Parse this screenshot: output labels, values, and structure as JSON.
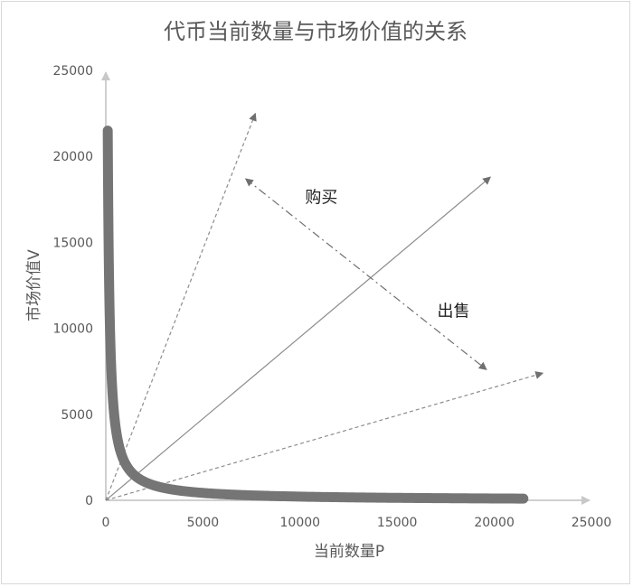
{
  "chart_data": {
    "type": "line",
    "title": "代币当前数量与市场价值的关系",
    "xlabel": "当前数量P",
    "ylabel": "市场价值V",
    "xlim": [
      0,
      25000
    ],
    "ylim": [
      0,
      25000
    ],
    "x_ticks": [
      "0",
      "5000",
      "10000",
      "15000",
      "20000",
      "25000"
    ],
    "y_ticks": [
      "0",
      "5000",
      "10000",
      "15000",
      "20000",
      "25000"
    ],
    "grid": false,
    "legend": "none",
    "series": [
      {
        "curve": "P*V=k",
        "k": 2150000,
        "x_range": [
          100,
          21500
        ],
        "color": "#757575"
      }
    ],
    "rays": [
      {
        "style": "dashed",
        "to": [
          7700,
          22500
        ]
      },
      {
        "style": "solid",
        "to": [
          19800,
          18800
        ]
      },
      {
        "style": "dashed",
        "to": [
          22500,
          7400
        ]
      }
    ],
    "direction_arrow": {
      "from": [
        7200,
        18700
      ],
      "to": [
        19600,
        7600
      ],
      "style": "dash-dot"
    },
    "annotations": [
      {
        "text": "购买",
        "x": 11100,
        "y": 17300
      },
      {
        "text": "出售",
        "x": 17900,
        "y": 10700
      }
    ]
  },
  "colors": {
    "curve": "#757575",
    "axis": "#bfbfbf",
    "rays": "#8c8c8c",
    "text": "#595959"
  }
}
